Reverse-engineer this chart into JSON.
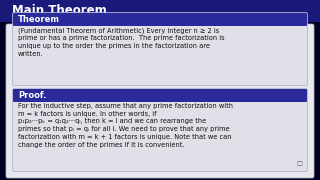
{
  "title": "Main Theorem",
  "title_bg": "#1a1a7a",
  "title_fg": "#ffffff",
  "outer_bg": "#000020",
  "content_bg": "#e8e8ee",
  "box_bg": "#e0e0e8",
  "box_edge": "#aaaacc",
  "header_bg": "#2a2a9a",
  "header_fg": "#ffffff",
  "theorem_header": "Theorem",
  "theorem_text": "(Fundamental Theorem of Arithmetic) Every integer n ≥ 2 is\nprime or has a prime factorization.  The prime factorization is\nunique up to the order the primes in the factorization are\nwritten.",
  "proof_header": "Proof.",
  "proof_text": "For the inductive step, assume that any prime factorization with\nm = k factors is unique. In other words, if\np₁p₂···pₖ = q₁q₂···qₗ, then k = l and we can rearrange the\nprimes so that pᵢ = qᵢ for all i. We need to prove that any prime\nfactorization with m = k + 1 factors is unique. Note that we can\nchange the order of the primes if it is convenient.",
  "font_size_title": 8.5,
  "font_size_header": 6.0,
  "font_size_body": 4.8
}
